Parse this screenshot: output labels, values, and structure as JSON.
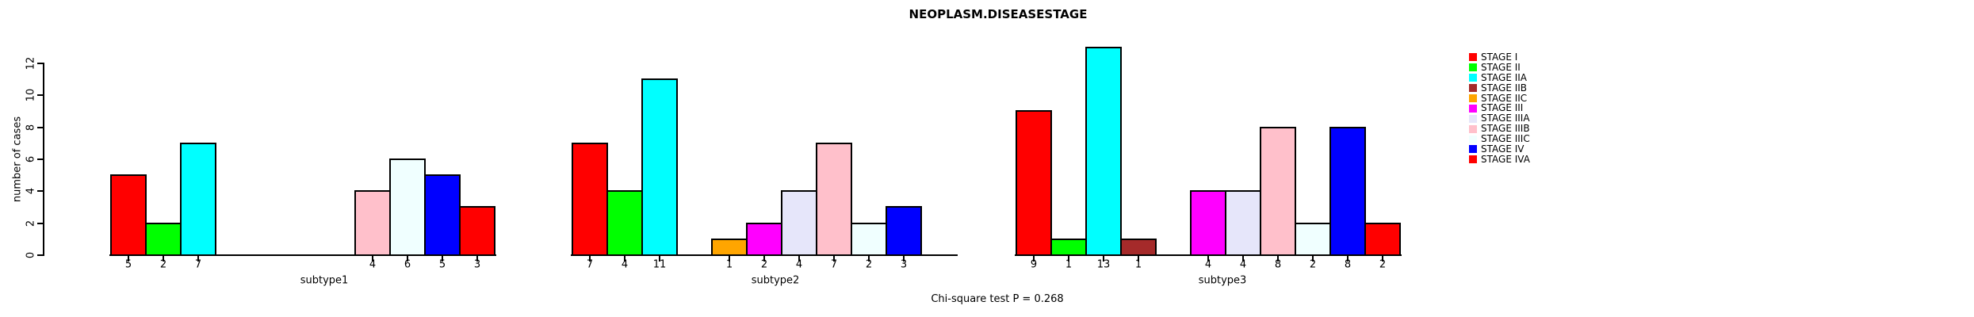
{
  "chart_data": {
    "type": "bar",
    "title": "NEOPLASM.DISEASESTAGE",
    "ylabel": "number of cases",
    "note": "Chi-square test P = 0.268",
    "ylim": [
      0,
      12
    ],
    "yticks": [
      0,
      2,
      4,
      6,
      8,
      10,
      12
    ],
    "grid": false,
    "legend_position": "right",
    "background": "#ffffff",
    "axis_color": "#000000",
    "categories": [
      "subtype1",
      "subtype2",
      "subtype3"
    ],
    "legend": [
      {
        "label": "STAGE I",
        "color": "#FF0000"
      },
      {
        "label": "STAGE II",
        "color": "#00FF00"
      },
      {
        "label": "STAGE IIA",
        "color": "#00FFFF"
      },
      {
        "label": "STAGE IIB",
        "color": "#A52A2A"
      },
      {
        "label": "STAGE IIC",
        "color": "#FFA500"
      },
      {
        "label": "STAGE III",
        "color": "#FF00FF"
      },
      {
        "label": "STAGE IIIA",
        "color": "#E6E6FA"
      },
      {
        "label": "STAGE IIIB",
        "color": "#FFC0CB"
      },
      {
        "label": "STAGE IIIC",
        "color": "#F0FFFF"
      },
      {
        "label": "STAGE IV",
        "color": "#0000FF"
      },
      {
        "label": "STAGE IVA",
        "color": "#FF0000"
      }
    ],
    "series": [
      {
        "name": "STAGE I",
        "color": "#FF0000",
        "values": [
          5,
          7,
          9
        ]
      },
      {
        "name": "STAGE II",
        "color": "#00FF00",
        "values": [
          2,
          4,
          1
        ]
      },
      {
        "name": "STAGE IIA",
        "color": "#00FFFF",
        "values": [
          7,
          11,
          13
        ]
      },
      {
        "name": "STAGE IIB",
        "color": "#A52A2A",
        "values": [
          0,
          0,
          1
        ]
      },
      {
        "name": "STAGE IIC",
        "color": "#FFA500",
        "values": [
          0,
          1,
          0
        ]
      },
      {
        "name": "STAGE III",
        "color": "#FF00FF",
        "values": [
          0,
          2,
          4
        ]
      },
      {
        "name": "STAGE IIIA",
        "color": "#E6E6FA",
        "values": [
          0,
          4,
          4
        ]
      },
      {
        "name": "STAGE IIIB",
        "color": "#FFC0CB",
        "values": [
          4,
          7,
          8
        ]
      },
      {
        "name": "STAGE IIIC",
        "color": "#F0FFFF",
        "values": [
          6,
          2,
          2
        ]
      },
      {
        "name": "STAGE IV",
        "color": "#0000FF",
        "values": [
          5,
          3,
          8
        ]
      },
      {
        "name": "STAGE IVA",
        "color": "#FF0000",
        "values": [
          3,
          0,
          2
        ]
      }
    ]
  }
}
